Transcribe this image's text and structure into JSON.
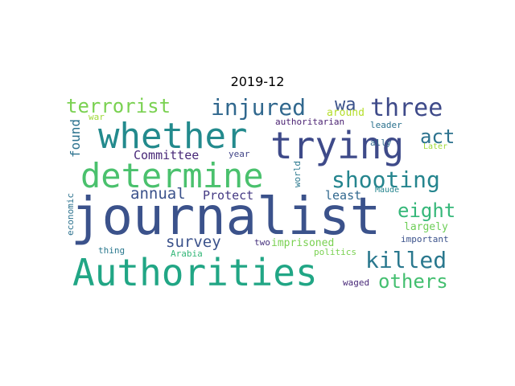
{
  "title": "2019-12",
  "words": [
    {
      "text": "journalist",
      "color": "#3b528b"
    },
    {
      "text": "Authorities",
      "color": "#21a685"
    },
    {
      "text": "trying",
      "color": "#3e4a89"
    },
    {
      "text": "whether",
      "color": "#238a8d"
    },
    {
      "text": "determine",
      "color": "#4ac16d"
    },
    {
      "text": "injured",
      "color": "#31688e"
    },
    {
      "text": "three",
      "color": "#3e4a89"
    },
    {
      "text": "terrorist",
      "color": "#7ad151"
    },
    {
      "text": "shooting",
      "color": "#25858e"
    },
    {
      "text": "killed",
      "color": "#2a788e"
    },
    {
      "text": "others",
      "color": "#44bf70"
    },
    {
      "text": "eight",
      "color": "#35b779"
    },
    {
      "text": "act",
      "color": "#2c728e"
    },
    {
      "text": "wa",
      "color": "#3b528b"
    },
    {
      "text": "annual",
      "color": "#3b528b"
    },
    {
      "text": "survey",
      "color": "#3b528b"
    },
    {
      "text": "Committee",
      "color": "#482878"
    },
    {
      "text": "Protect",
      "color": "#443983"
    },
    {
      "text": "found",
      "color": "#2c728e"
    },
    {
      "text": "least",
      "color": "#31688e"
    },
    {
      "text": "largely",
      "color": "#6ece58"
    },
    {
      "text": "imprisoned",
      "color": "#7ad151"
    },
    {
      "text": "around",
      "color": "#b5de2b"
    },
    {
      "text": "authoritarian",
      "color": "#481f70"
    },
    {
      "text": "leader",
      "color": "#2c728e"
    },
    {
      "text": "Later",
      "color": "#a0da39"
    },
    {
      "text": "ally",
      "color": "#31688e"
    },
    {
      "text": "Maude",
      "color": "#25858e"
    },
    {
      "text": "important",
      "color": "#3b528b"
    },
    {
      "text": "politics",
      "color": "#7ad151"
    },
    {
      "text": "waged",
      "color": "#482878"
    },
    {
      "text": "two",
      "color": "#46327e"
    },
    {
      "text": "year",
      "color": "#414487"
    },
    {
      "text": "world",
      "color": "#2a788e"
    },
    {
      "text": "economic",
      "color": "#2c728e"
    },
    {
      "text": "war",
      "color": "#a0da39"
    },
    {
      "text": "thing",
      "color": "#2a788e"
    },
    {
      "text": "Arabia",
      "color": "#35b779"
    }
  ]
}
